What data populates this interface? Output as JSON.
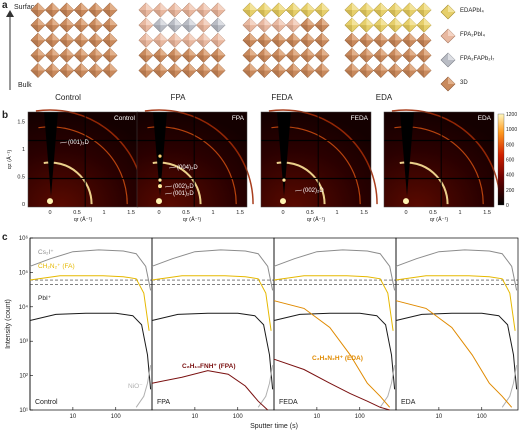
{
  "panel_a": {
    "letter": "a",
    "axis_top": "Surface",
    "axis_bottom": "Bulk",
    "captions": [
      "Control",
      "FPA",
      "FEDA",
      "EDA"
    ],
    "legend": [
      {
        "label": "EDAPbI₄",
        "color": "#e6cf6b"
      },
      {
        "label": "FPA₂PbI₄",
        "color": "#e8b8a0"
      },
      {
        "label": "FPA₂FAPb₂I₇",
        "color": "#b9bcc4"
      },
      {
        "label": "3D",
        "color": "#c98a5d"
      }
    ]
  },
  "panel_b": {
    "letter": "b",
    "ylabel": "qz (Å⁻¹)",
    "xlabel": "qr (Å⁻¹)",
    "titles": [
      "Control",
      "FPA",
      "FEDA",
      "EDA"
    ],
    "annotations": [
      {
        "panel": 0,
        "text": "(001)₃D"
      },
      {
        "panel": 1,
        "text": "(004)₂D"
      },
      {
        "panel": 1,
        "text": "(002)₂D"
      },
      {
        "panel": 1,
        "text": "(001)₂D"
      },
      {
        "panel": 2,
        "text": "(002)₂D"
      }
    ],
    "yticks": [
      "0",
      "0.5",
      "1",
      "1.5"
    ],
    "xticks": [
      "0",
      "0.5",
      "1",
      "1.5"
    ],
    "colorbar_ticks": [
      "1200",
      "1000",
      "800",
      "600",
      "400",
      "200",
      "0"
    ]
  },
  "chart_data": {
    "type": "line",
    "xlabel": "Sputter time (s)",
    "ylabel": "Intensity (count)",
    "x_scale": "log",
    "y_scale": "log",
    "ylim": [
      10,
      1000000
    ],
    "xticks": [
      "10",
      "100"
    ],
    "yticks": [
      "10¹",
      "10²",
      "10³",
      "10⁴",
      "10⁵",
      "10⁶"
    ],
    "panels": [
      "Control",
      "FPA",
      "FEDA",
      "EDA"
    ],
    "series_labels": [
      {
        "text": "Cs₂I⁺",
        "color": "#8c8c8c"
      },
      {
        "text": "CH₂N₂⁺ (FA)",
        "color": "#e6b800"
      },
      {
        "text": "PbI⁺",
        "color": "#1a1a1a"
      },
      {
        "text": "NiO⁻",
        "color": "#b0b0b0"
      },
      {
        "text": "C₈H₁₀FNH⁺ (FPA)",
        "color": "#7a1010"
      },
      {
        "text": "C₂H₈N₂H⁺ (EDA)",
        "color": "#e08a00"
      }
    ]
  },
  "panel_c": {
    "letter": "c"
  }
}
